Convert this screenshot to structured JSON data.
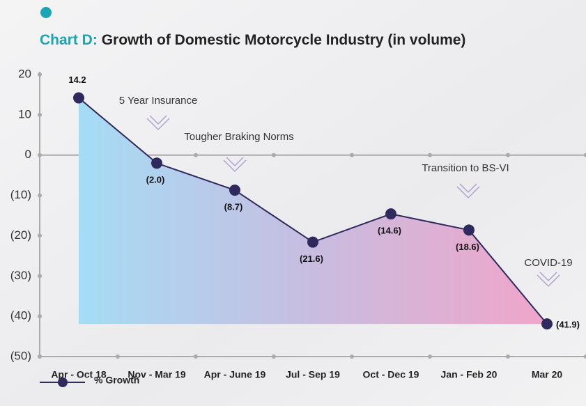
{
  "chart_data": {
    "type": "line",
    "title_prefix": "Chart D:",
    "title": "Growth of Domestic Motorcycle Industry (in volume)",
    "categories": [
      "Apr - Oct 18",
      "Nov - Mar 19",
      "Apr - June 19",
      "Jul - Sep 19",
      "Oct - Dec 19",
      "Jan - Feb 20",
      "Mar 20"
    ],
    "series": [
      {
        "name": "% Growth",
        "color": "#2e2a5e",
        "values": [
          14.2,
          -2.0,
          -8.7,
          -21.6,
          -14.6,
          -18.6,
          -41.9
        ],
        "value_labels": [
          "14.2",
          "(2.0)",
          "(8.7)",
          "(21.6)",
          "(14.6)",
          "(18.6)",
          "(41.9)"
        ]
      }
    ],
    "ylim": [
      -50,
      20
    ],
    "yticks": [
      20,
      10,
      0,
      {
        "value": -10,
        "label": "(10)"
      },
      {
        "value": -20,
        "label": "(20)"
      },
      {
        "value": -30,
        "label": "(30)"
      },
      {
        "value": -40,
        "label": "(40)"
      },
      {
        "value": -50,
        "label": "(50)"
      }
    ],
    "annotations": [
      "5 Year Insurance",
      "Tougher Braking Norms",
      "Transition to BS-VI",
      "COVID-19"
    ],
    "title_color": "#1aa5b5"
  }
}
